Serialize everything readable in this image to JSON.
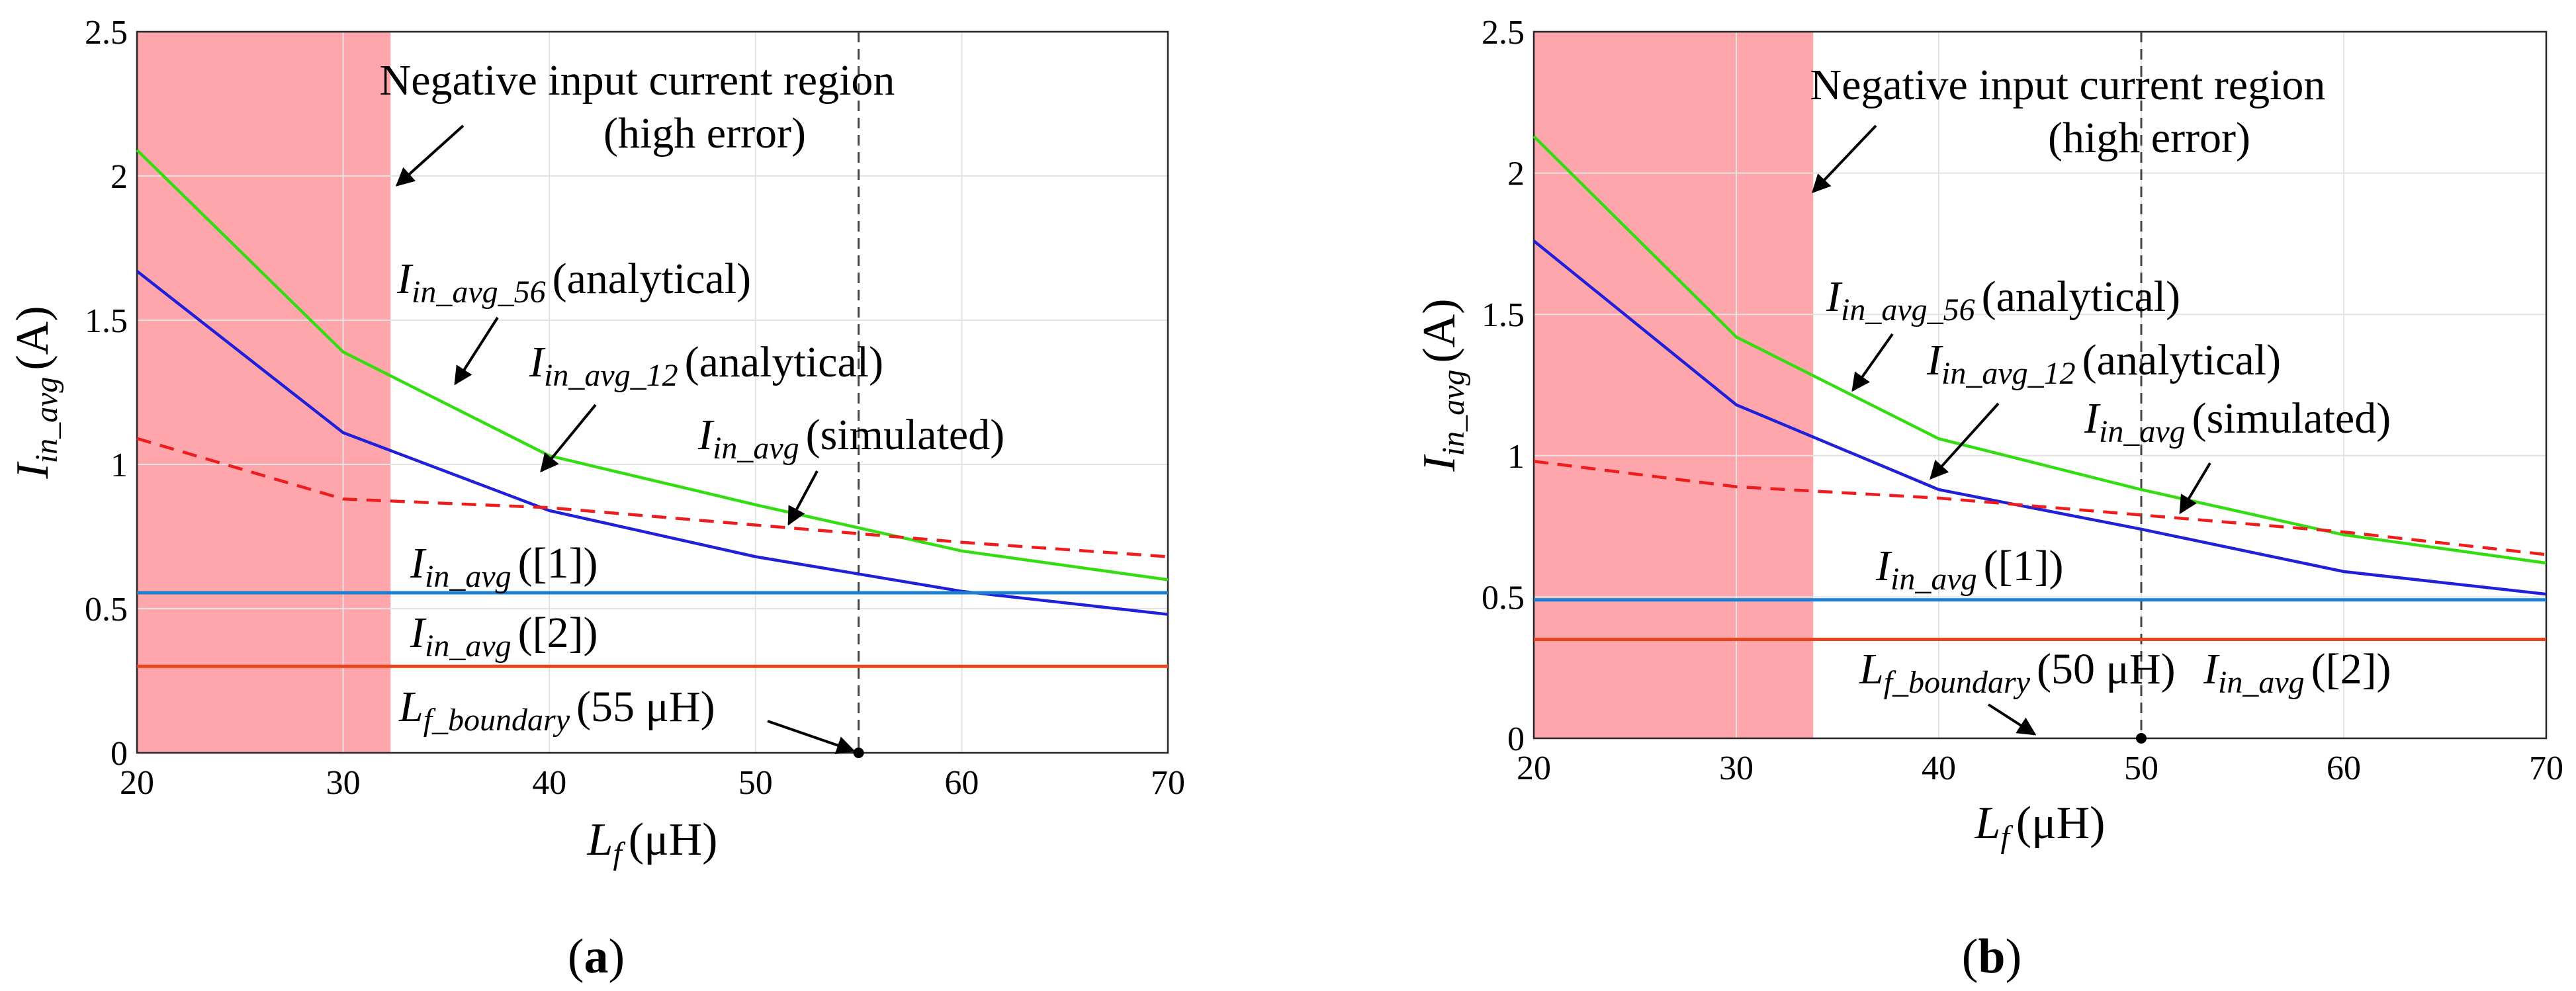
{
  "chart_data": [
    {
      "type": "line",
      "panel_label": "a",
      "xlabel": {
        "main": "L",
        "sub": "f",
        "unit": "(μH)"
      },
      "ylabel": {
        "main": "I",
        "sub": "in_avg",
        "unit": "(A)"
      },
      "xlim": [
        20,
        70
      ],
      "ylim": [
        0,
        2.5
      ],
      "xticks": [
        "20",
        "30",
        "40",
        "50",
        "60",
        "70"
      ],
      "yticks": [
        "0",
        "0.5",
        "1",
        "1.5",
        "2",
        "2.5"
      ],
      "grid": true,
      "shaded_region": {
        "x": [
          20,
          32.3
        ],
        "color": "#ffa6ad"
      },
      "boundary_x": 55,
      "series": [
        {
          "name": "I_in_avg_56 (analytical)",
          "color": "#33dd11",
          "style": "solid",
          "x": [
            20,
            30,
            40,
            50,
            60,
            70
          ],
          "values": [
            2.09,
            1.39,
            1.03,
            0.86,
            0.7,
            0.6
          ]
        },
        {
          "name": "I_in_avg_12 (analytical)",
          "color": "#2020d8",
          "style": "solid",
          "x": [
            20,
            30,
            40,
            50,
            60,
            70
          ],
          "values": [
            1.67,
            1.11,
            0.84,
            0.68,
            0.56,
            0.48
          ]
        },
        {
          "name": "I_in_avg (simulated)",
          "color": "#ee1c1c",
          "style": "dashed",
          "x": [
            20,
            30,
            40,
            50,
            60,
            70
          ],
          "values": [
            1.09,
            0.88,
            0.85,
            0.79,
            0.73,
            0.68
          ]
        },
        {
          "name": "I_in_avg ([1])",
          "color": "#1d7fcf",
          "style": "solid",
          "x": [
            20,
            70
          ],
          "values": [
            0.555,
            0.555
          ]
        },
        {
          "name": "I_in_avg ([2])",
          "color": "#e8441f",
          "style": "solid",
          "x": [
            20,
            70
          ],
          "values": [
            0.3,
            0.3
          ]
        }
      ],
      "annotations": {
        "region_line1": "Negative input current region",
        "region_line2": "(high error)",
        "i56": {
          "main": "I",
          "sub": "in_avg_56",
          "text": "(analytical)"
        },
        "i12": {
          "main": "I",
          "sub": "in_avg_12",
          "text": "(analytical)"
        },
        "isim": {
          "main": "I",
          "sub": "in_avg",
          "text": "(simulated)"
        },
        "i1": {
          "main": "I",
          "sub": "in_avg",
          "text": "([1])"
        },
        "i2": {
          "main": "I",
          "sub": "in_avg",
          "text": "([2])"
        },
        "boundary": {
          "main": "L",
          "sub": "f_boundary",
          "text": "(55 μH)"
        }
      }
    },
    {
      "type": "line",
      "panel_label": "b",
      "xlabel": {
        "main": "L",
        "sub": "f",
        "unit": "(μH)"
      },
      "ylabel": {
        "main": "I",
        "sub": "in_avg",
        "unit": "(A)"
      },
      "xlim": [
        20,
        70
      ],
      "ylim": [
        0,
        2.5
      ],
      "xticks": [
        "20",
        "30",
        "40",
        "50",
        "60",
        "70"
      ],
      "yticks": [
        "0",
        "0.5",
        "1",
        "1.5",
        "2",
        "2.5"
      ],
      "grid": true,
      "shaded_region": {
        "x": [
          20,
          33.8
        ],
        "color": "#ffa6ad"
      },
      "boundary_x": 50,
      "series": [
        {
          "name": "I_in_avg_56 (analytical)",
          "color": "#33dd11",
          "style": "solid",
          "x": [
            20,
            30,
            40,
            50,
            60,
            70
          ],
          "values": [
            2.13,
            1.42,
            1.06,
            0.88,
            0.72,
            0.62
          ]
        },
        {
          "name": "I_in_avg_12 (analytical)",
          "color": "#2020d8",
          "style": "solid",
          "x": [
            20,
            30,
            40,
            50,
            60,
            70
          ],
          "values": [
            1.76,
            1.18,
            0.88,
            0.74,
            0.59,
            0.51
          ]
        },
        {
          "name": "I_in_avg (simulated)",
          "color": "#ee1c1c",
          "style": "dashed",
          "x": [
            20,
            30,
            40,
            50,
            60,
            70
          ],
          "values": [
            0.98,
            0.89,
            0.85,
            0.79,
            0.73,
            0.65
          ]
        },
        {
          "name": "I_in_avg ([1])",
          "color": "#1d7fcf",
          "style": "solid",
          "x": [
            20,
            70
          ],
          "values": [
            0.49,
            0.49
          ]
        },
        {
          "name": "I_in_avg ([2])",
          "color": "#e8441f",
          "style": "solid",
          "x": [
            20,
            70
          ],
          "values": [
            0.35,
            0.35
          ]
        }
      ],
      "annotations": {
        "region_line1": "Negative input current region",
        "region_line2": "(high error)",
        "i56": {
          "main": "I",
          "sub": "in_avg_56",
          "text": "(analytical)"
        },
        "i12": {
          "main": "I",
          "sub": "in_avg_12",
          "text": "(analytical)"
        },
        "isim": {
          "main": "I",
          "sub": "in_avg",
          "text": "(simulated)"
        },
        "i1": {
          "main": "I",
          "sub": "in_avg",
          "text": "([1])"
        },
        "i2": {
          "main": "I",
          "sub": "in_avg",
          "text": "([2])"
        },
        "boundary": {
          "main": "L",
          "sub": "f_boundary",
          "text": "(50 μH)"
        }
      }
    }
  ]
}
